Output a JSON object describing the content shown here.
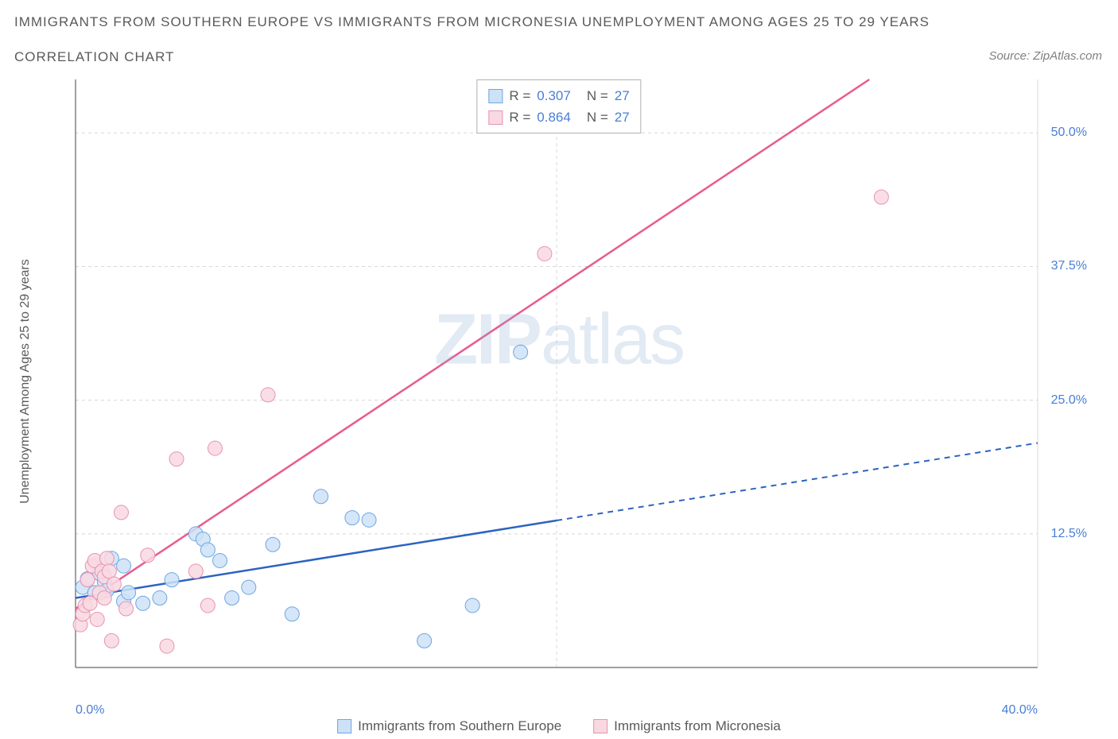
{
  "title": "IMMIGRANTS FROM SOUTHERN EUROPE VS IMMIGRANTS FROM MICRONESIA UNEMPLOYMENT AMONG AGES 25 TO 29 YEARS",
  "subtitle": "CORRELATION CHART",
  "source": "Source: ZipAtlas.com",
  "ylabel": "Unemployment Among Ages 25 to 29 years",
  "watermark_bold": "ZIP",
  "watermark_light": "atlas",
  "chart": {
    "type": "scatter",
    "background_color": "#ffffff",
    "grid_color": "#d8d8d8",
    "axis_color": "#808080",
    "tick_color": "#4a7fd6",
    "xlim": [
      0,
      40
    ],
    "ylim": [
      0,
      55
    ],
    "xticks": [
      {
        "pos": 0,
        "label": "0.0%",
        "align": "left"
      },
      {
        "pos": 40,
        "label": "40.0%",
        "align": "right"
      }
    ],
    "yticks": [
      {
        "pos": 12.5,
        "label": "12.5%"
      },
      {
        "pos": 25.0,
        "label": "25.0%"
      },
      {
        "pos": 37.5,
        "label": "37.5%"
      },
      {
        "pos": 50.0,
        "label": "50.0%"
      }
    ],
    "xgrid": [
      20
    ],
    "series": [
      {
        "name": "Immigrants from Southern Europe",
        "fill": "#cde2f7",
        "stroke": "#6fa6e0",
        "line_color": "#2d63c0",
        "marker_r": 9,
        "R": "0.307",
        "N": "27",
        "regression": {
          "x1": 0,
          "y1": 6.5,
          "x2": 40,
          "y2": 21.0,
          "solid_until_x": 20
        },
        "points": [
          [
            0.3,
            7.5
          ],
          [
            0.5,
            8.3
          ],
          [
            0.8,
            7.0
          ],
          [
            1.0,
            8.8
          ],
          [
            1.2,
            8.0
          ],
          [
            1.3,
            7.2
          ],
          [
            1.5,
            10.2
          ],
          [
            2.0,
            6.2
          ],
          [
            2.0,
            9.5
          ],
          [
            2.2,
            7.0
          ],
          [
            2.8,
            6.0
          ],
          [
            3.5,
            6.5
          ],
          [
            4.0,
            8.2
          ],
          [
            5.0,
            12.5
          ],
          [
            5.3,
            12.0
          ],
          [
            5.5,
            11.0
          ],
          [
            6.0,
            10.0
          ],
          [
            6.5,
            6.5
          ],
          [
            7.2,
            7.5
          ],
          [
            8.2,
            11.5
          ],
          [
            9.0,
            5.0
          ],
          [
            10.2,
            16.0
          ],
          [
            11.5,
            14.0
          ],
          [
            12.2,
            13.8
          ],
          [
            14.5,
            2.5
          ],
          [
            16.5,
            5.8
          ],
          [
            18.5,
            29.5
          ]
        ]
      },
      {
        "name": "Immigrants from Micronesia",
        "fill": "#f9d8e2",
        "stroke": "#e694b0",
        "line_color": "#e85b8f",
        "marker_r": 9,
        "R": "0.864",
        "N": "27",
        "regression": {
          "x1": 0,
          "y1": 5.5,
          "x2": 33,
          "y2": 55.0,
          "solid_until_x": 33
        },
        "points": [
          [
            0.2,
            4.0
          ],
          [
            0.3,
            5.0
          ],
          [
            0.4,
            5.8
          ],
          [
            0.5,
            8.2
          ],
          [
            0.6,
            6.0
          ],
          [
            0.7,
            9.5
          ],
          [
            0.8,
            10.0
          ],
          [
            0.9,
            4.5
          ],
          [
            1.0,
            7.0
          ],
          [
            1.1,
            9.0
          ],
          [
            1.2,
            8.5
          ],
          [
            1.2,
            6.5
          ],
          [
            1.3,
            10.2
          ],
          [
            1.4,
            9.0
          ],
          [
            1.5,
            2.5
          ],
          [
            1.6,
            7.8
          ],
          [
            1.9,
            14.5
          ],
          [
            2.1,
            5.5
          ],
          [
            3.0,
            10.5
          ],
          [
            3.8,
            2.0
          ],
          [
            4.2,
            19.5
          ],
          [
            5.0,
            9.0
          ],
          [
            5.5,
            5.8
          ],
          [
            5.8,
            20.5
          ],
          [
            8.0,
            25.5
          ],
          [
            19.5,
            38.7
          ],
          [
            33.5,
            44.0
          ]
        ]
      }
    ]
  }
}
